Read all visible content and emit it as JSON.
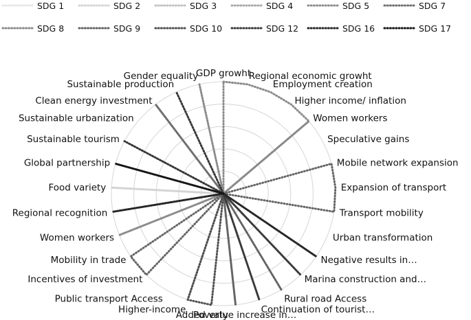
{
  "chart_data": {
    "type": "radar",
    "title": "",
    "grid": true,
    "radial_range": [
      0,
      5
    ],
    "legend_position": "top",
    "categories": [
      "GDP growht",
      "Regional economic growht",
      "Employment creation",
      "Higher income/ inflation",
      "Women workers",
      "Speculative gains",
      "Mobile network expansion",
      "Expansion of transport",
      "Transport mobility",
      "Urban transformation",
      "Negative results in…",
      "Marina construction and…",
      "Rural road Access",
      "Continuation of tourist…",
      "Added value increase in…",
      "Poverty",
      "Higher-income",
      "Public transport Access",
      "Incentives of investment",
      "Mobility in trade",
      "Women workers",
      "Regional recognition",
      "Food variety",
      "Global partnership",
      "Sustainable tourism",
      "Sustainable urbanization",
      "Clean energy investment",
      "Sustainable production",
      "Gender equality"
    ],
    "series": [
      {
        "name": "SDG 1",
        "color": "#e6e6e6",
        "values": [
          0,
          0,
          0,
          0,
          0,
          0,
          0,
          0,
          0,
          0,
          0,
          0,
          0,
          0,
          0,
          5,
          0,
          0,
          0,
          0,
          0,
          0,
          0,
          0,
          0,
          0,
          0,
          0,
          0
        ]
      },
      {
        "name": "SDG 2",
        "color": "#d4d4d4",
        "values": [
          0,
          0,
          0,
          0,
          0,
          0,
          0,
          0,
          0,
          0,
          0,
          0,
          0,
          0,
          0,
          0,
          0,
          0,
          0,
          0,
          0,
          0,
          5,
          0,
          0,
          0,
          0,
          0,
          0
        ]
      },
      {
        "name": "SDG 3",
        "color": "#c0c0c0",
        "values": [
          0,
          0,
          0,
          0,
          0,
          0,
          0,
          0,
          0,
          0,
          0,
          0,
          0,
          0,
          0,
          0,
          0,
          0,
          0,
          0,
          0,
          0,
          0,
          0,
          0,
          0,
          0,
          0,
          0
        ]
      },
      {
        "name": "SDG 4",
        "color": "#a8a8a8",
        "values": [
          0,
          0,
          0,
          0,
          0,
          0,
          0,
          0,
          0,
          0,
          0,
          0,
          0,
          0,
          0,
          0,
          0,
          0,
          0,
          0,
          0,
          0,
          0,
          0,
          0,
          0,
          0,
          0,
          0
        ]
      },
      {
        "name": "SDG 5",
        "color": "#8c8c8c",
        "values": [
          0,
          0,
          0,
          0,
          5,
          0,
          0,
          0,
          0,
          0,
          0,
          0,
          0,
          0,
          0,
          0,
          0,
          0,
          0,
          0,
          5,
          0,
          0,
          0,
          0,
          0,
          0,
          0,
          5
        ]
      },
      {
        "name": "SDG 7",
        "color": "#6e6e6e",
        "values": [
          0,
          0,
          0,
          0,
          0,
          0,
          0,
          0,
          0,
          0,
          0,
          0,
          0,
          0,
          0,
          0,
          0,
          0,
          0,
          0,
          0,
          0,
          0,
          0,
          0,
          0,
          5,
          0,
          0
        ]
      },
      {
        "name": "SDG 8",
        "color": "#8a8a8a",
        "values": [
          5,
          5,
          5,
          5,
          5,
          0,
          0,
          0,
          0,
          0,
          0,
          0,
          0,
          0,
          0,
          0,
          5,
          0,
          0,
          0,
          0,
          0,
          0,
          0,
          0,
          0,
          0,
          0,
          0
        ]
      },
      {
        "name": "SDG 9",
        "color": "#646464",
        "values": [
          0,
          0,
          0,
          0,
          0,
          0,
          5,
          5,
          5,
          0,
          0,
          0,
          5,
          0,
          5,
          0,
          0,
          0,
          5,
          5,
          0,
          0,
          0,
          0,
          0,
          0,
          0,
          0,
          0
        ]
      },
      {
        "name": "SDG 10",
        "color": "#505050",
        "values": [
          0,
          0,
          0,
          0,
          0,
          0,
          0,
          0,
          0,
          0,
          0,
          0,
          0,
          0,
          0,
          5,
          5,
          0,
          0,
          0,
          0,
          0,
          0,
          0,
          0,
          0,
          0,
          0,
          0
        ]
      },
      {
        "name": "SDG 12",
        "color": "#3a3a3a",
        "values": [
          0,
          0,
          0,
          0,
          0,
          0,
          0,
          0,
          0,
          0,
          0,
          5,
          0,
          5,
          0,
          0,
          0,
          0,
          0,
          0,
          0,
          0,
          0,
          0,
          5,
          0,
          0,
          5,
          0
        ]
      },
      {
        "name": "SDG 16",
        "color": "#262626",
        "values": [
          0,
          0,
          0,
          0,
          0,
          0,
          0,
          0,
          0,
          0,
          5,
          0,
          0,
          0,
          0,
          0,
          0,
          0,
          0,
          0,
          0,
          5,
          0,
          0,
          0,
          0,
          0,
          0,
          0
        ]
      },
      {
        "name": "SDG 17",
        "color": "#151515",
        "values": [
          0,
          0,
          0,
          0,
          0,
          0,
          0,
          0,
          0,
          0,
          0,
          0,
          0,
          0,
          0,
          0,
          0,
          0,
          0,
          0,
          0,
          0,
          0,
          5,
          0,
          0,
          0,
          0,
          0
        ]
      }
    ]
  }
}
